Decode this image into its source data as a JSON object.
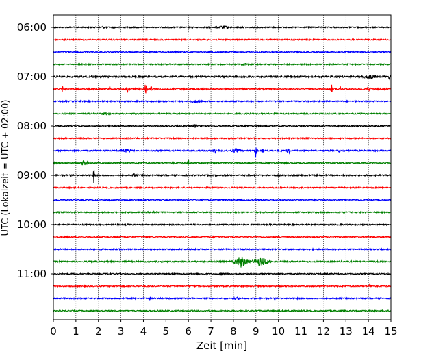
{
  "chart_data": {
    "type": "line",
    "title": "",
    "xlabel": "Zeit  [min]",
    "ylabel": "UTC (Lokalzeit = UTC + 02:00)",
    "xlim": [
      0,
      15
    ],
    "x_ticks": [
      "0",
      "1",
      "2",
      "3",
      "4",
      "5",
      "6",
      "7",
      "8",
      "9",
      "10",
      "11",
      "12",
      "13",
      "14",
      "15"
    ],
    "y_tick_labels": [
      "06:00",
      "07:00",
      "08:00",
      "09:00",
      "10:00",
      "11:00"
    ],
    "grid": "vertical dotted",
    "row_duration_min": 15,
    "colors_cycle": [
      "#000000",
      "#ff0000",
      "#0000ff",
      "#008000"
    ],
    "rows": [
      {
        "time": "06:00",
        "color": "#000000",
        "noise": 0.9,
        "events": [
          {
            "t": 7.6,
            "amp": 2.5,
            "dur": 1.0
          },
          {
            "t": 2.2,
            "amp": 2,
            "dur": 0.6
          }
        ]
      },
      {
        "time": "06:15",
        "color": "#ff0000",
        "noise": 0.9,
        "events": []
      },
      {
        "time": "06:30",
        "color": "#0000ff",
        "noise": 0.9,
        "events": []
      },
      {
        "time": "06:45",
        "color": "#008000",
        "noise": 0.9,
        "events": [
          {
            "t": 8.5,
            "amp": 2,
            "dur": 0.6
          }
        ]
      },
      {
        "time": "07:00",
        "color": "#000000",
        "noise": 1.2,
        "events": [
          {
            "t": 14.0,
            "amp": 4,
            "dur": 1.0
          },
          {
            "t": 14.95,
            "amp": 8,
            "dur": 0.1
          }
        ]
      },
      {
        "time": "07:15",
        "color": "#ff0000",
        "noise": 1.0,
        "events": [
          {
            "t": 0.4,
            "amp": 5,
            "dur": 0.1
          },
          {
            "t": 1.1,
            "amp": 4,
            "dur": 0.1
          },
          {
            "t": 2.5,
            "amp": 6,
            "dur": 0.08
          },
          {
            "t": 3.3,
            "amp": 5,
            "dur": 0.2
          },
          {
            "t": 4.1,
            "amp": 10,
            "dur": 0.15
          },
          {
            "t": 4.35,
            "amp": 6,
            "dur": 0.1
          },
          {
            "t": 12.35,
            "amp": 12,
            "dur": 0.1
          },
          {
            "t": 12.75,
            "amp": 5,
            "dur": 0.1
          },
          {
            "t": 14.0,
            "amp": 4,
            "dur": 0.3
          }
        ]
      },
      {
        "time": "07:30",
        "color": "#0000ff",
        "noise": 0.9,
        "events": [
          {
            "t": 6.3,
            "amp": 2.5,
            "dur": 0.8
          }
        ]
      },
      {
        "time": "07:45",
        "color": "#008000",
        "noise": 0.9,
        "events": [
          {
            "t": 2.3,
            "amp": 2.5,
            "dur": 0.6
          }
        ]
      },
      {
        "time": "08:00",
        "color": "#000000",
        "noise": 0.9,
        "events": [
          {
            "t": 6.3,
            "amp": 4,
            "dur": 0.2
          },
          {
            "t": 9.0,
            "amp": 3,
            "dur": 0.08
          }
        ]
      },
      {
        "time": "08:15",
        "color": "#ff0000",
        "noise": 0.9,
        "events": []
      },
      {
        "time": "08:30",
        "color": "#0000ff",
        "noise": 1.0,
        "events": [
          {
            "t": 3.2,
            "amp": 3,
            "dur": 0.8
          },
          {
            "t": 7.2,
            "amp": 5,
            "dur": 0.1
          },
          {
            "t": 8.1,
            "amp": 4,
            "dur": 0.5
          },
          {
            "t": 9.0,
            "amp": 14,
            "dur": 0.1
          },
          {
            "t": 9.3,
            "amp": 6,
            "dur": 0.1
          },
          {
            "t": 10.45,
            "amp": 7,
            "dur": 0.15
          },
          {
            "t": 12.7,
            "amp": 4,
            "dur": 0.1
          }
        ]
      },
      {
        "time": "08:45",
        "color": "#008000",
        "noise": 1.0,
        "events": [
          {
            "t": 1.4,
            "amp": 3.5,
            "dur": 0.8
          },
          {
            "t": 5.3,
            "amp": 3,
            "dur": 0.1
          },
          {
            "t": 6.0,
            "amp": 6,
            "dur": 0.1
          }
        ]
      },
      {
        "time": "09:00",
        "color": "#000000",
        "noise": 1.0,
        "events": [
          {
            "t": 1.8,
            "amp": 14,
            "dur": 0.06
          },
          {
            "t": 3.6,
            "amp": 4,
            "dur": 0.1
          }
        ]
      },
      {
        "time": "09:15",
        "color": "#ff0000",
        "noise": 0.9,
        "events": []
      },
      {
        "time": "09:30",
        "color": "#0000ff",
        "noise": 0.9,
        "events": []
      },
      {
        "time": "09:45",
        "color": "#008000",
        "noise": 0.9,
        "events": [
          {
            "t": 4.5,
            "amp": 2,
            "dur": 0.6
          }
        ]
      },
      {
        "time": "10:00",
        "color": "#000000",
        "noise": 0.9,
        "events": [
          {
            "t": 3.3,
            "amp": 3,
            "dur": 0.2
          }
        ]
      },
      {
        "time": "10:15",
        "color": "#ff0000",
        "noise": 0.9,
        "events": []
      },
      {
        "time": "10:30",
        "color": "#0000ff",
        "noise": 0.9,
        "events": []
      },
      {
        "time": "10:45",
        "color": "#008000",
        "noise": 1.0,
        "events": [
          {
            "t": 8.35,
            "amp": 9,
            "dur": 0.7
          },
          {
            "t": 9.2,
            "amp": 7,
            "dur": 0.9
          }
        ]
      },
      {
        "time": "11:00",
        "color": "#000000",
        "noise": 0.9,
        "events": [
          {
            "t": 7.5,
            "amp": 2,
            "dur": 0.6
          }
        ]
      },
      {
        "time": "11:15",
        "color": "#ff0000",
        "noise": 0.9,
        "events": [
          {
            "t": 14.1,
            "amp": 3.5,
            "dur": 0.3
          }
        ]
      },
      {
        "time": "11:30",
        "color": "#0000ff",
        "noise": 0.9,
        "events": [
          {
            "t": 4.3,
            "amp": 3.5,
            "dur": 0.1
          },
          {
            "t": 8.2,
            "amp": 2,
            "dur": 0.8
          }
        ]
      },
      {
        "time": "11:45",
        "color": "#008000",
        "noise": 0.9,
        "events": [
          {
            "t": 10.5,
            "amp": 2.5,
            "dur": 0.3
          }
        ]
      }
    ]
  }
}
